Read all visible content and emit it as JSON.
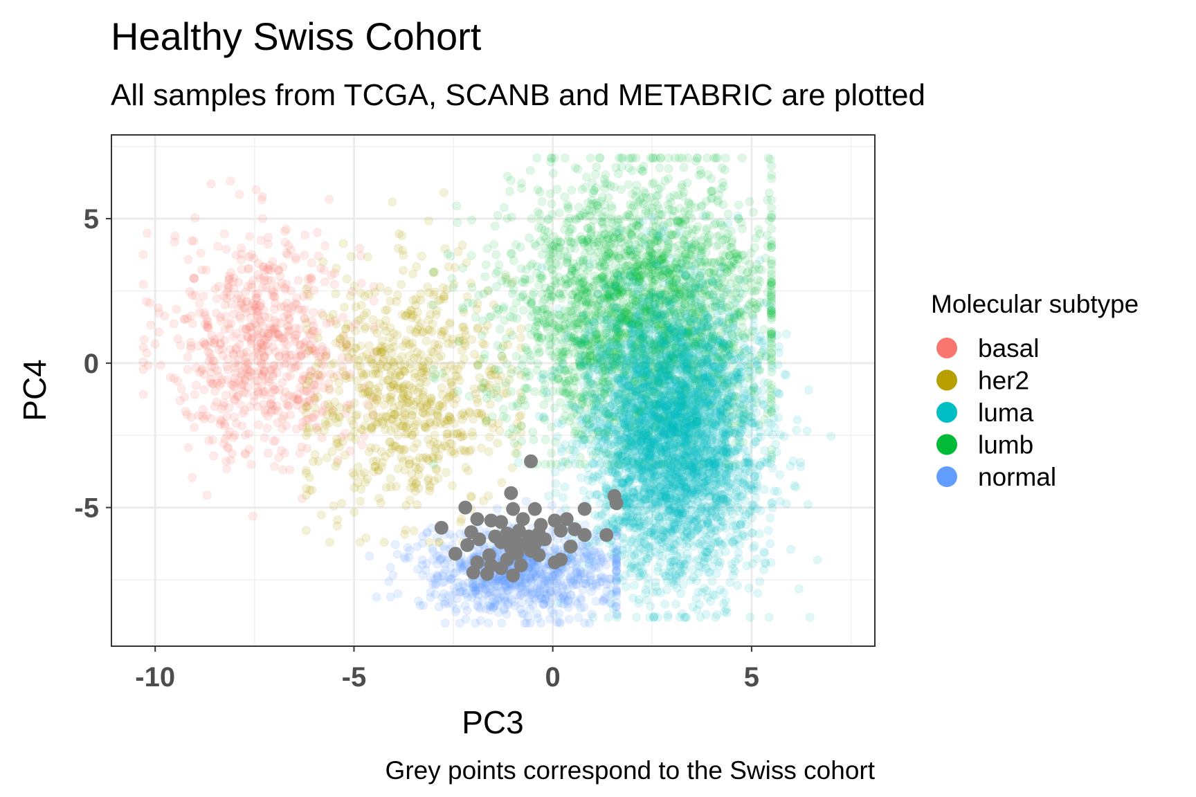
{
  "chart_data": {
    "type": "scatter",
    "title": "Healthy Swiss Cohort",
    "subtitle": "All samples from TCGA, SCANB and METABRIC are plotted",
    "xlabel": "PC3",
    "ylabel": "PC4",
    "caption": "Grey points correspond to the Swiss cohort",
    "xlim": [
      -11.1,
      8.1
    ],
    "ylim": [
      -9.8,
      7.9
    ],
    "xticks": [
      -10,
      -5,
      0,
      5
    ],
    "xtick_labels": [
      "-10",
      "-5",
      "0",
      "5"
    ],
    "yticks": [
      -5,
      0,
      5
    ],
    "ytick_labels": [
      "-5",
      "0",
      "5"
    ],
    "grid": true,
    "legend": {
      "title": "Molecular subtype",
      "position": "right",
      "entries": [
        "basal",
        "her2",
        "luma",
        "lumb",
        "normal"
      ]
    },
    "series": [
      {
        "name": "basal",
        "color": "#F8766D",
        "alpha": 0.15,
        "n": 700,
        "center": [
          -7.3,
          0.6
        ],
        "sd": [
          1.2,
          2.0
        ],
        "x_range": [
          -10.3,
          -4.5
        ],
        "y_range": [
          -5.3,
          6.3
        ]
      },
      {
        "name": "her2",
        "color": "#B79F00",
        "alpha": 0.15,
        "n": 750,
        "center": [
          -3.6,
          -1.0
        ],
        "sd": [
          1.3,
          2.1
        ],
        "x_range": [
          -6.2,
          -0.8
        ],
        "y_range": [
          -6.2,
          5.9
        ]
      },
      {
        "name": "lumb",
        "color": "#00BA38",
        "alpha": 0.12,
        "n": 2800,
        "center": [
          2.2,
          1.8
        ],
        "sd": [
          1.7,
          2.3
        ],
        "x_range": [
          -3.0,
          5.5
        ],
        "y_range": [
          -3.5,
          7.1
        ]
      },
      {
        "name": "luma",
        "color": "#00BFC4",
        "alpha": 0.12,
        "n": 3800,
        "center": [
          3.0,
          -2.6
        ],
        "sd": [
          1.1,
          2.4
        ],
        "x_range": [
          -1.0,
          7.0
        ],
        "y_range": [
          -8.8,
          5.1
        ]
      },
      {
        "name": "normal",
        "color": "#619CFF",
        "alpha": 0.15,
        "n": 900,
        "center": [
          -0.9,
          -7.2
        ],
        "sd": [
          1.3,
          0.8
        ],
        "x_range": [
          -5.5,
          1.6
        ],
        "y_range": [
          -9.0,
          -4.5
        ]
      }
    ],
    "highlight_series": {
      "color": "#7F7F7F",
      "points": [
        [
          -0.55,
          -3.4
        ],
        [
          -1.05,
          -4.5
        ],
        [
          1.55,
          -4.6
        ],
        [
          1.6,
          -4.85
        ],
        [
          -2.2,
          -5.0
        ],
        [
          -1.0,
          -5.05
        ],
        [
          -0.45,
          -5.05
        ],
        [
          0.8,
          -5.05
        ],
        [
          -1.9,
          -5.4
        ],
        [
          -1.55,
          -5.45
        ],
        [
          -0.75,
          -5.4
        ],
        [
          0.05,
          -5.45
        ],
        [
          0.35,
          -5.4
        ],
        [
          -1.3,
          -5.5
        ],
        [
          -0.3,
          -5.6
        ],
        [
          -2.8,
          -5.7
        ],
        [
          -2.05,
          -5.85
        ],
        [
          0.55,
          -5.75
        ],
        [
          -1.15,
          -5.9
        ],
        [
          -0.85,
          -5.8
        ],
        [
          -0.35,
          -5.9
        ],
        [
          0.2,
          -5.8
        ],
        [
          0.8,
          -5.95
        ],
        [
          1.35,
          -5.95
        ],
        [
          -1.45,
          -6.0
        ],
        [
          -1.05,
          -6.05
        ],
        [
          -0.6,
          -6.0
        ],
        [
          -1.85,
          -6.1
        ],
        [
          -0.9,
          -6.2
        ],
        [
          -0.2,
          -6.1
        ],
        [
          -2.15,
          -6.3
        ],
        [
          -1.3,
          -6.2
        ],
        [
          -0.75,
          -6.3
        ],
        [
          -0.45,
          -6.25
        ],
        [
          0.45,
          -6.35
        ],
        [
          -1.05,
          -6.4
        ],
        [
          -0.55,
          -6.5
        ],
        [
          -2.45,
          -6.6
        ],
        [
          -1.6,
          -6.65
        ],
        [
          -0.9,
          -6.6
        ],
        [
          -0.35,
          -6.65
        ],
        [
          -1.15,
          -6.8
        ],
        [
          0.2,
          -6.8
        ],
        [
          -1.9,
          -6.9
        ],
        [
          0.05,
          -6.9
        ],
        [
          -1.55,
          -7.0
        ],
        [
          -0.8,
          -7.0
        ],
        [
          -1.3,
          -7.1
        ],
        [
          -2.0,
          -7.25
        ],
        [
          -1.65,
          -7.3
        ],
        [
          -1.0,
          -7.35
        ]
      ]
    }
  }
}
